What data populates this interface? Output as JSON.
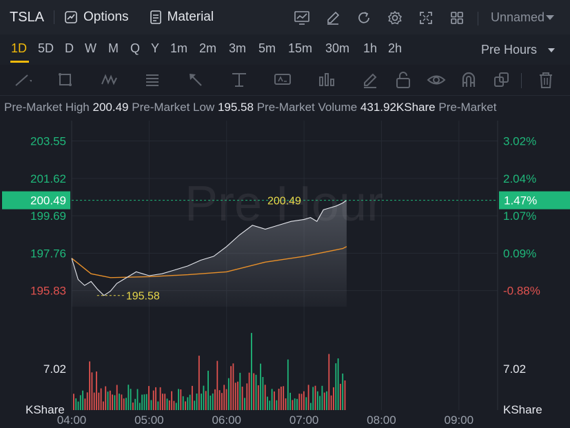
{
  "toolbar": {
    "symbol": "TSLA",
    "options_label": "Options",
    "material_label": "Material",
    "layout_name": "Unnamed",
    "icons": [
      "chart-line-icon",
      "pen-icon",
      "refresh-icon",
      "gear-icon",
      "fullscreen-icon",
      "grid-icon"
    ]
  },
  "intervals": {
    "items": [
      "1D",
      "5D",
      "D",
      "W",
      "M",
      "Q",
      "Y",
      "1m",
      "2m",
      "3m",
      "5m",
      "15m",
      "30m",
      "1h",
      "2h"
    ],
    "active": "1D",
    "session_label": "Pre Hours"
  },
  "stats": {
    "high_label": "Pre-Market High",
    "high_value": "200.49",
    "low_label": "Pre-Market Low",
    "low_value": "195.58",
    "volume_label": "Pre-Market Volume",
    "volume_value": "431.92KShare",
    "trail_label": "Pre-Market"
  },
  "chart": {
    "watermark": "Pre Hour",
    "colors": {
      "up": "#1fb77a",
      "down": "#e0524f",
      "avg": "#e8902a",
      "price": "#e6e8ee",
      "marker": "#e8d84a",
      "current_bg": "#1fb77a"
    },
    "price_axis": {
      "ticks": [
        "203.55",
        "201.62",
        "199.69",
        "197.76",
        "195.83"
      ],
      "pct_ticks": [
        "3.02%",
        "2.04%",
        "1.07%",
        "0.09%",
        "-0.88%"
      ],
      "current": "200.49",
      "current_pct": "1.47%"
    },
    "annotations": {
      "high": "200.49",
      "low": "195.58"
    },
    "volume_axis": {
      "tick": "7.02",
      "unit": "KShare"
    },
    "time_ticks": [
      "04:00",
      "05:00",
      "06:00",
      "07:00",
      "08:00",
      "09:00"
    ]
  },
  "chart_data": {
    "type": "line",
    "xlabel": "",
    "ylabel": "",
    "x_range": [
      "04:00",
      "09:30"
    ],
    "ylim": [
      195.0,
      204.6
    ],
    "series": [
      {
        "x": [
          "04:00",
          "04:05",
          "04:10",
          "04:15",
          "04:20",
          "04:25",
          "04:30",
          "04:35",
          "04:40",
          "04:45",
          "04:50",
          "04:55",
          "05:00",
          "05:10",
          "05:20",
          "05:30",
          "05:40",
          "05:50",
          "06:00",
          "06:10",
          "06:20",
          "06:30",
          "06:40",
          "06:50",
          "07:00",
          "07:05",
          "07:10",
          "07:15",
          "07:20",
          "07:25",
          "07:30",
          "07:33"
        ],
        "y": [
          197.5,
          196.4,
          196.1,
          196.3,
          195.9,
          195.58,
          195.8,
          196.2,
          196.4,
          196.6,
          196.8,
          196.7,
          196.6,
          196.7,
          196.9,
          197.1,
          197.4,
          197.6,
          198.1,
          198.7,
          199.2,
          199.0,
          199.2,
          199.4,
          199.5,
          199.6,
          199.4,
          200.0,
          200.1,
          200.2,
          200.35,
          200.49
        ]
      },
      {
        "x": [
          "04:00",
          "04:15",
          "04:30",
          "05:00",
          "05:30",
          "06:00",
          "06:30",
          "07:00",
          "07:30",
          "07:33"
        ],
        "y": [
          197.5,
          196.7,
          196.5,
          196.55,
          196.65,
          196.8,
          197.3,
          197.6,
          198.0,
          198.1
        ]
      }
    ],
    "volume_ylim": [
      0,
      14
    ],
    "volume_tick": 7.02
  }
}
